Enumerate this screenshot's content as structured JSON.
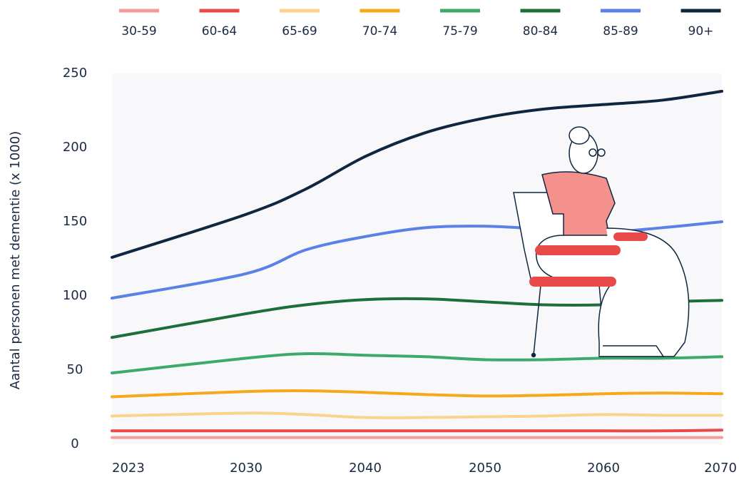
{
  "chart_data": {
    "type": "line",
    "y_label": "Aantal personen met dementie (x 1000)",
    "x": [
      2023,
      2030,
      2035,
      2040,
      2045,
      2050,
      2055,
      2060,
      2065,
      2070
    ],
    "xlim": [
      2023,
      2070
    ],
    "xticks": [
      2023,
      2030,
      2040,
      2050,
      2060,
      2070
    ],
    "ylim": [
      0,
      250
    ],
    "yticks": [
      0,
      50,
      100,
      150,
      200,
      250
    ],
    "series": [
      {
        "name": "30-59",
        "color": "#f49a9a",
        "values": [
          4.5,
          4.5,
          4.5,
          4.5,
          4.5,
          4.5,
          4.5,
          4.5,
          4.5,
          4.5
        ]
      },
      {
        "name": "60-64",
        "color": "#e84a4a",
        "values": [
          9,
          9,
          9,
          9,
          9,
          9,
          9,
          9,
          9,
          9.5
        ]
      },
      {
        "name": "65-69",
        "color": "#fbd38a",
        "values": [
          19,
          21,
          20,
          18,
          18,
          18.5,
          19,
          20,
          19.5,
          19.5
        ]
      },
      {
        "name": "70-74",
        "color": "#f5a81c",
        "values": [
          32,
          35.5,
          36,
          35,
          33.5,
          32.5,
          33,
          34,
          34.5,
          34
        ]
      },
      {
        "name": "75-79",
        "color": "#3daa6b",
        "values": [
          48,
          58,
          61,
          60,
          59,
          57,
          57,
          58,
          58,
          59
        ]
      },
      {
        "name": "80-84",
        "color": "#1e6e3a",
        "values": [
          72,
          88,
          94,
          97.5,
          98,
          96,
          94,
          94,
          96,
          97
        ]
      },
      {
        "name": "85-89",
        "color": "#5b80e8",
        "values": [
          98.5,
          115,
          131,
          140,
          146,
          147,
          145,
          143,
          146,
          150
        ]
      },
      {
        "name": "90+",
        "color": "#10263f",
        "values": [
          126,
          155,
          172,
          194,
          210,
          220,
          226,
          229,
          232,
          238
        ]
      }
    ]
  }
}
